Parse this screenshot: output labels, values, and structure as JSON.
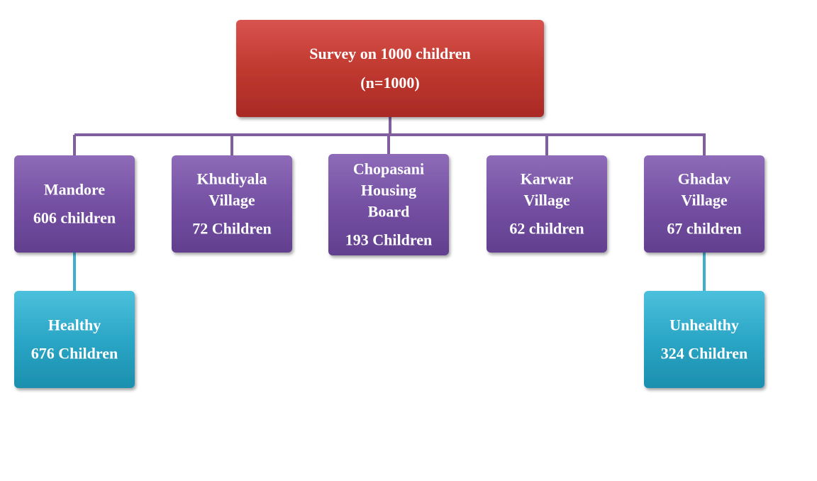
{
  "nodes": [
    {
      "lines": [
        "Survey on 1000 children",
        "(n=1000)"
      ]
    },
    {
      "lines": [
        "Mandore",
        "606 children"
      ]
    },
    {
      "lines": [
        "Khudiyala",
        "Village",
        "72 Children"
      ]
    },
    {
      "lines": [
        "Chopasani",
        "Housing",
        "Board",
        "193 Children"
      ]
    },
    {
      "lines": [
        "Karwar",
        "Village",
        "62 children"
      ]
    },
    {
      "lines": [
        "Ghadav",
        "Village",
        "67 children"
      ]
    },
    {
      "lines": [
        "Healthy",
        "676 Children"
      ]
    },
    {
      "lines": [
        "Unhealthy",
        "324 Children"
      ]
    }
  ]
}
